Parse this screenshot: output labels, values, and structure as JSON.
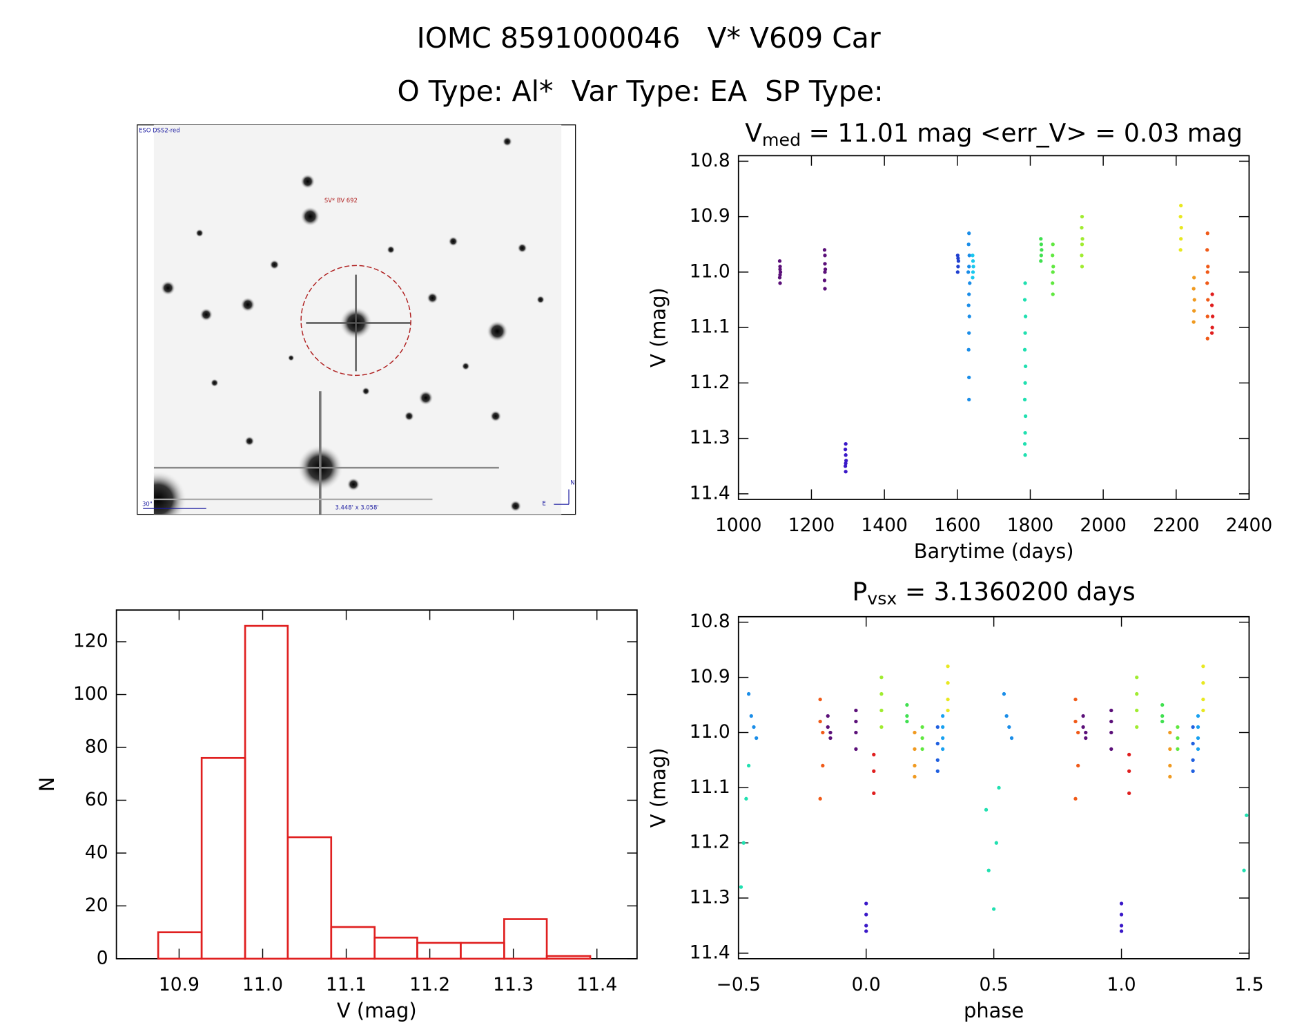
{
  "header": {
    "lines": [
      "IOMC 8591000046   V* V609 Car",
      "O Type: Al*  Var Type: EA  SP Type:"
    ]
  },
  "image": {
    "labels": {
      "survey": "ESO DSS2-red",
      "target": "SV* BV 692",
      "scale": "30\"",
      "size": "3.448' x 3.058'",
      "north": "N",
      "east": "E"
    }
  },
  "chart_data": [
    {
      "type": "scatter",
      "title": [
        "V",
        "med",
        " = 11.01 mag <err_V> = 0.03 mag"
      ],
      "xlabel": "Barytime (days)",
      "ylabel": "V (mag)",
      "xlim": [
        1000,
        2400
      ],
      "xticks": [
        1000,
        1200,
        1400,
        1600,
        1800,
        2000,
        2200,
        2400
      ],
      "ylim": [
        11.41,
        10.79
      ],
      "yticks": [
        10.8,
        10.9,
        {
          "value": 11,
          "label": "11.0"
        },
        11.1,
        11.2,
        11.3,
        11.4
      ],
      "series": [
        {
          "color": "#5b1079",
          "x": [
            1113,
            1114,
            1114,
            1115,
            1114,
            1113,
            1114
          ],
          "values": [
            10.98,
            10.99,
            10.995,
            11.0,
            11.005,
            11.01,
            11.02
          ]
        },
        {
          "color": "#5b1079",
          "x": [
            1236,
            1237,
            1237,
            1238,
            1237,
            1236,
            1237
          ],
          "values": [
            10.96,
            10.97,
            10.985,
            10.995,
            11.0,
            11.015,
            11.03
          ]
        },
        {
          "color": "#3a18c8",
          "x": [
            1294,
            1293,
            1294,
            1295,
            1294,
            1293,
            1294
          ],
          "values": [
            11.31,
            11.32,
            11.33,
            11.34,
            11.345,
            11.35,
            11.36
          ]
        },
        {
          "color": "#2040d0",
          "x": [
            1601,
            1602,
            1603,
            1602,
            1601
          ],
          "values": [
            10.97,
            10.975,
            10.98,
            10.99,
            11.0
          ]
        },
        {
          "color": "#1a8de8",
          "x": [
            1632,
            1631,
            1633,
            1632,
            1630,
            1634,
            1632,
            1631,
            1633,
            1632,
            1631,
            1632,
            1632
          ],
          "values": [
            10.93,
            10.95,
            10.97,
            10.99,
            11.0,
            11.02,
            11.04,
            11.06,
            11.08,
            11.11,
            11.14,
            11.19,
            11.23
          ]
        },
        {
          "color": "#18c8ee",
          "x": [
            1642,
            1643,
            1644,
            1643,
            1642
          ],
          "values": [
            10.97,
            10.98,
            10.99,
            11.0,
            11.01
          ]
        },
        {
          "color": "#20e0b0",
          "x": [
            1786,
            1785,
            1787,
            1786,
            1785,
            1787,
            1786,
            1785,
            1787,
            1786,
            1785,
            1786
          ],
          "values": [
            11.02,
            11.05,
            11.08,
            11.11,
            11.14,
            11.17,
            11.2,
            11.23,
            11.26,
            11.29,
            11.31,
            11.33
          ]
        },
        {
          "color": "#40e050",
          "x": [
            1829,
            1830,
            1831,
            1830,
            1829
          ],
          "values": [
            10.94,
            10.95,
            10.96,
            10.97,
            10.98
          ]
        },
        {
          "color": "#60e840",
          "x": [
            1862,
            1861,
            1863,
            1862,
            1861,
            1862
          ],
          "values": [
            10.95,
            10.97,
            10.99,
            11.0,
            11.02,
            11.04
          ]
        },
        {
          "color": "#a0ec30",
          "x": [
            1942,
            1941,
            1943,
            1942,
            1941,
            1942
          ],
          "values": [
            10.9,
            10.92,
            10.94,
            10.95,
            10.97,
            10.99
          ]
        },
        {
          "color": "#e8e820",
          "x": [
            2213,
            2212,
            2214,
            2213,
            2212
          ],
          "values": [
            10.88,
            10.9,
            10.92,
            10.94,
            10.96
          ]
        },
        {
          "color": "#f09a20",
          "x": [
            2249,
            2248,
            2250,
            2249,
            2248
          ],
          "values": [
            11.01,
            11.03,
            11.05,
            11.07,
            11.09
          ]
        },
        {
          "color": "#f05a18",
          "x": [
            2286,
            2285,
            2287,
            2286,
            2285,
            2287,
            2286,
            2286
          ],
          "values": [
            10.93,
            10.96,
            10.99,
            11.0,
            11.02,
            11.05,
            11.08,
            11.12
          ]
        },
        {
          "color": "#e01e1e",
          "x": [
            2299,
            2298,
            2300,
            2299,
            2298
          ],
          "values": [
            11.04,
            11.06,
            11.08,
            11.1,
            11.11
          ]
        }
      ]
    },
    {
      "type": "scatter",
      "title": [
        "P",
        "vsx",
        " = 3.1360200 days"
      ],
      "xlabel": "phase",
      "ylabel": "V (mag)",
      "xlim": [
        -0.5,
        1.5
      ],
      "xticks": [
        {
          "value": -0.5,
          "label": "−0.5"
        },
        {
          "value": 0,
          "label": "0.0"
        },
        0.5,
        {
          "value": 1,
          "label": "1.0"
        },
        1.5
      ],
      "ylim": [
        11.41,
        10.79
      ],
      "yticks": [
        10.8,
        10.9,
        {
          "value": 11,
          "label": "11.0"
        },
        11.1,
        11.2,
        11.3,
        11.4
      ],
      "series": [
        {
          "color": "#1a8de8",
          "x": [
            -0.46,
            -0.45,
            -0.44,
            -0.43,
            0.54,
            0.55,
            0.56,
            0.57
          ],
          "values": [
            10.93,
            10.97,
            10.99,
            11.01,
            10.93,
            10.97,
            10.99,
            11.01
          ]
        },
        {
          "color": "#20e0b0",
          "x": [
            -0.49,
            -0.48,
            -0.47,
            -0.46,
            0.47,
            0.48,
            0.5,
            0.51,
            0.52,
            1.48,
            1.49
          ],
          "values": [
            11.28,
            11.2,
            11.12,
            11.06,
            11.14,
            11.25,
            11.32,
            11.2,
            11.1,
            11.25,
            11.15
          ]
        },
        {
          "color": "#f05a18",
          "x": [
            -0.18,
            -0.18,
            -0.17,
            -0.17,
            -0.18,
            0.82,
            0.82,
            0.83,
            0.83,
            0.82
          ],
          "values": [
            10.94,
            10.98,
            11.0,
            11.06,
            11.12,
            10.94,
            10.98,
            11.0,
            11.06,
            11.12
          ]
        },
        {
          "color": "#5b1079",
          "x": [
            -0.15,
            -0.15,
            -0.14,
            -0.14,
            0.85,
            0.85,
            0.86,
            0.86
          ],
          "values": [
            10.97,
            10.99,
            11.0,
            11.01,
            10.97,
            10.99,
            11.0,
            11.01
          ]
        },
        {
          "color": "#5b1079",
          "x": [
            -0.04,
            -0.04,
            -0.04,
            -0.04,
            0.96,
            0.96,
            0.96,
            0.96
          ],
          "values": [
            10.96,
            10.98,
            11.0,
            11.03,
            10.96,
            10.98,
            11.0,
            11.03
          ]
        },
        {
          "color": "#3a18c8",
          "x": [
            0.0,
            0.0,
            0.0,
            0.0,
            1.0,
            1.0,
            1.0,
            1.0
          ],
          "values": [
            11.31,
            11.33,
            11.35,
            11.36,
            11.31,
            11.33,
            11.35,
            11.36
          ]
        },
        {
          "color": "#e01e1e",
          "x": [
            0.03,
            0.03,
            0.03,
            1.03,
            1.03,
            1.03
          ],
          "values": [
            11.04,
            11.07,
            11.11,
            11.04,
            11.07,
            11.11
          ]
        },
        {
          "color": "#a0ec30",
          "x": [
            0.06,
            0.06,
            0.06,
            0.06,
            1.06,
            1.06,
            1.06,
            1.06
          ],
          "values": [
            10.9,
            10.93,
            10.96,
            10.99,
            10.9,
            10.93,
            10.96,
            10.99
          ]
        },
        {
          "color": "#40e050",
          "x": [
            0.16,
            0.16,
            0.16,
            1.16,
            1.16,
            1.16
          ],
          "values": [
            10.95,
            10.97,
            10.98,
            10.95,
            10.97,
            10.98
          ]
        },
        {
          "color": "#f09a20",
          "x": [
            0.19,
            0.19,
            0.19,
            0.19,
            1.19,
            1.19,
            1.19,
            1.19
          ],
          "values": [
            11.0,
            11.03,
            11.06,
            11.08,
            11.0,
            11.03,
            11.06,
            11.08
          ]
        },
        {
          "color": "#60e840",
          "x": [
            0.22,
            0.22,
            0.22,
            1.22,
            1.22,
            1.22
          ],
          "values": [
            10.99,
            11.01,
            11.03,
            10.99,
            11.01,
            11.03
          ]
        },
        {
          "color": "#2060e0",
          "x": [
            0.28,
            0.28,
            0.28,
            0.28,
            1.28,
            1.28,
            1.28,
            1.28
          ],
          "values": [
            10.99,
            11.02,
            11.05,
            11.07,
            10.99,
            11.02,
            11.05,
            11.07
          ]
        },
        {
          "color": "#18a0f0",
          "x": [
            0.3,
            0.3,
            0.3,
            0.3,
            1.3,
            1.3,
            1.3,
            1.3
          ],
          "values": [
            10.97,
            10.99,
            11.01,
            11.03,
            10.97,
            10.99,
            11.01,
            11.03
          ]
        },
        {
          "color": "#e8e820",
          "x": [
            0.32,
            0.32,
            0.32,
            0.32,
            1.32,
            1.32,
            1.32,
            1.32
          ],
          "values": [
            10.88,
            10.91,
            10.94,
            10.96,
            10.88,
            10.91,
            10.94,
            10.96
          ]
        }
      ]
    },
    {
      "type": "histogram",
      "xlabel": "V (mag)",
      "ylabel": "N",
      "color": "#e02020",
      "bins": [
        10.875,
        10.927,
        10.979,
        11.03,
        11.082,
        11.134,
        11.185,
        11.237,
        11.289,
        11.34,
        11.392
      ],
      "values": [
        10,
        76,
        126,
        46,
        12,
        8,
        6,
        6,
        15,
        1
      ],
      "xlim": [
        10.825,
        11.448
      ],
      "xticks": [
        10.9,
        {
          "value": 11,
          "label": "11.0"
        },
        11.1,
        11.2,
        11.3,
        11.4
      ],
      "ylim": [
        0,
        132
      ],
      "yticks": [
        0,
        20,
        40,
        60,
        80,
        100,
        120
      ]
    }
  ]
}
